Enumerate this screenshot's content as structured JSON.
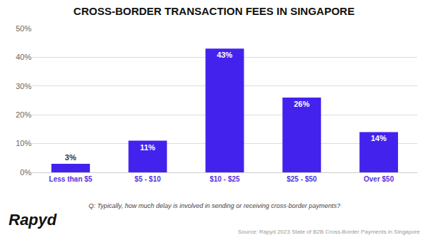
{
  "chart_data": {
    "type": "bar",
    "title": "CROSS-BORDER TRANSACTION FEES IN SINGAPORE",
    "categories": [
      "Less than $5",
      "$5 - $10",
      "$10 - $25",
      "$25 - $50",
      "Over $50"
    ],
    "values": [
      3,
      11,
      43,
      26,
      14
    ],
    "value_labels": [
      "3%",
      "11%",
      "43%",
      "26%",
      "14%"
    ],
    "data_labels": true,
    "color": "#4422EE",
    "ylim": [
      0,
      50
    ],
    "yticks": [
      {
        "value": 0,
        "label": "0%"
      },
      {
        "value": 10,
        "label": "10%"
      },
      {
        "value": 20,
        "label": "20%"
      },
      {
        "value": 30,
        "label": "30%"
      },
      {
        "value": 40,
        "label": "40%"
      },
      {
        "value": 50,
        "label": "50%"
      }
    ],
    "grid": true,
    "annotations": [
      "Rapyd",
      "Q: Typically, how much delay is involved in sending or receiving cross-border payments?",
      "Source: Rapyd 2023 State of B2B Cross-Border Payments in Singapore"
    ]
  }
}
